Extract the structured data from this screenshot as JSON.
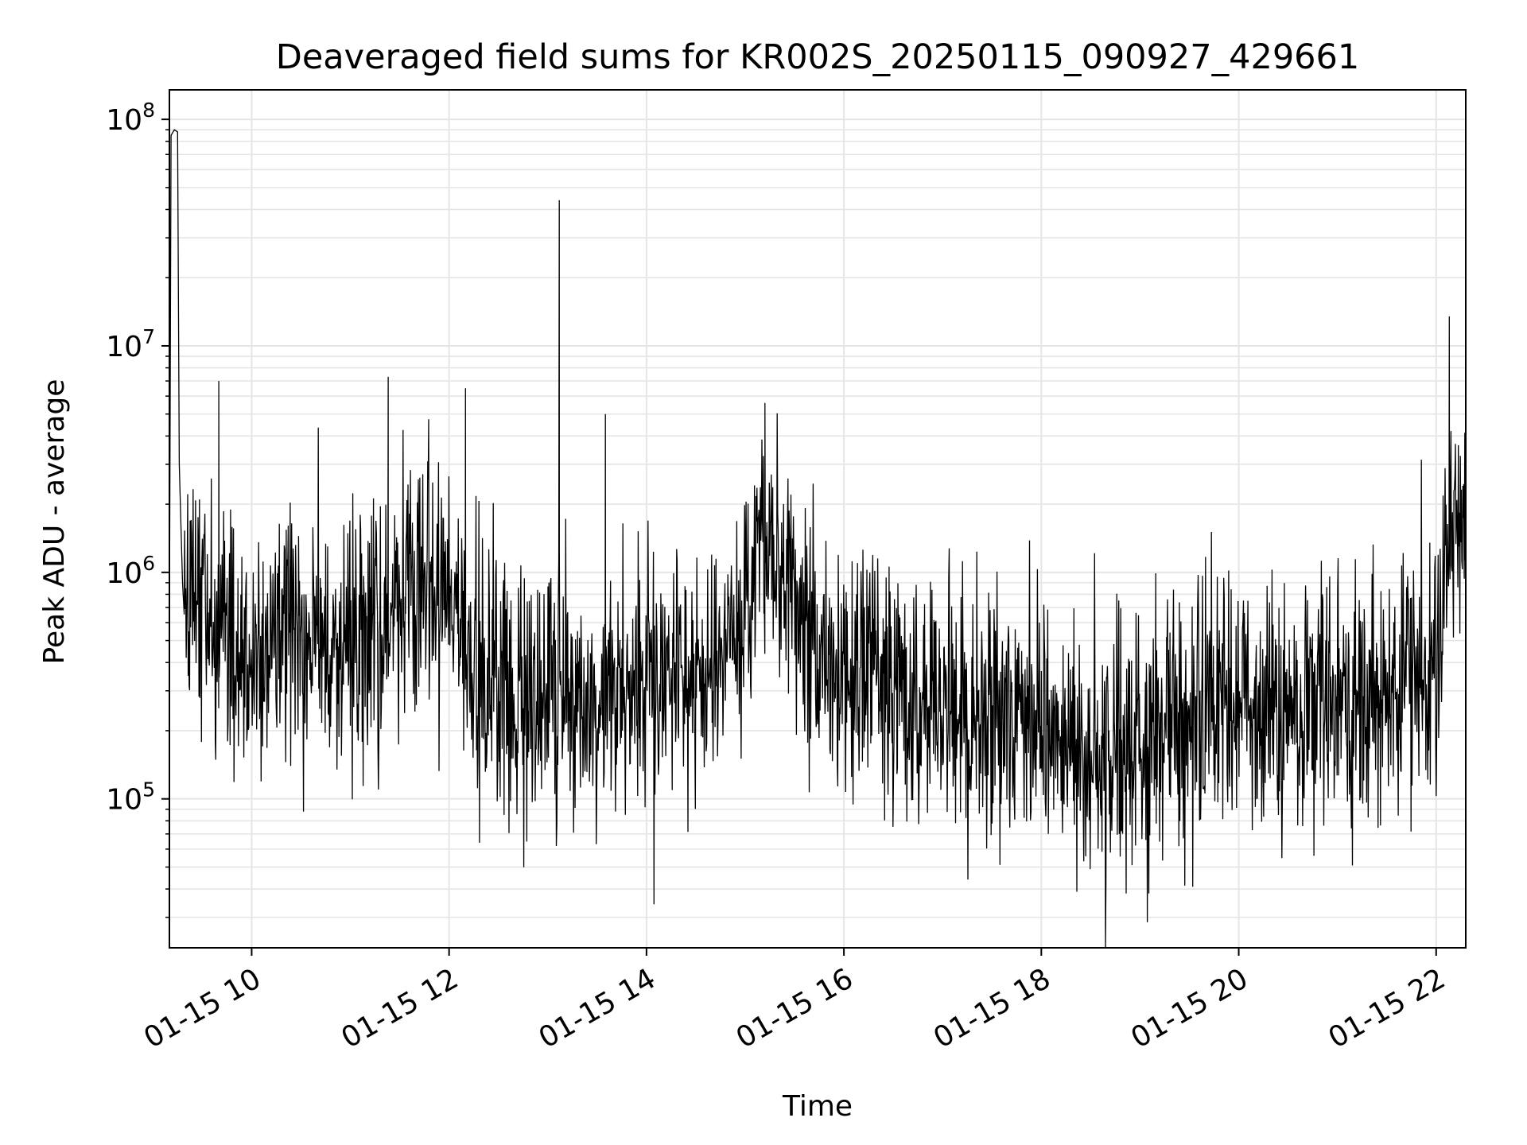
{
  "chart_data": {
    "type": "line",
    "title": "Deaveraged field sums for KR002S_20250115_090927_429661",
    "xlabel": "Time",
    "ylabel": "Peak ADU - average",
    "y_scale": "log",
    "grid": "major and minor",
    "line_color": "#000000",
    "grid_color": "#e5e5e5",
    "xlim": [
      "2025-01-15 09:10",
      "2025-01-15 22:18"
    ],
    "ylim": [
      22000,
      135000000
    ],
    "x_ticks": [
      {
        "time": "2025-01-15 10:00",
        "label": "01-15 10"
      },
      {
        "time": "2025-01-15 12:00",
        "label": "01-15 12"
      },
      {
        "time": "2025-01-15 14:00",
        "label": "01-15 14"
      },
      {
        "time": "2025-01-15 16:00",
        "label": "01-15 16"
      },
      {
        "time": "2025-01-15 18:00",
        "label": "01-15 18"
      },
      {
        "time": "2025-01-15 20:00",
        "label": "01-15 20"
      },
      {
        "time": "2025-01-15 22:00",
        "label": "01-15 22"
      }
    ],
    "y_ticks": [
      {
        "value": 100000,
        "base": "10",
        "exp": "5"
      },
      {
        "value": 1000000,
        "base": "10",
        "exp": "6"
      },
      {
        "value": 10000000,
        "base": "10",
        "exp": "7"
      },
      {
        "value": 100000000,
        "base": "10",
        "exp": "8"
      }
    ],
    "series": [
      {
        "x": [
          "2025-01-15 09:10",
          "2025-01-15 09:11",
          "2025-01-15 09:13",
          "2025-01-15 09:15",
          "2025-01-15 09:16",
          "2025-01-15 09:18",
          "2025-01-15 09:25",
          "2025-01-15 09:35",
          "2025-01-15 09:47",
          "2025-01-15 10:00",
          "2025-01-15 10:30",
          "2025-01-15 11:00",
          "2025-01-15 11:30",
          "2025-01-15 11:45",
          "2025-01-15 12:00",
          "2025-01-15 12:30",
          "2025-01-15 13:00",
          "2025-01-15 13:30",
          "2025-01-15 14:00",
          "2025-01-15 14:30",
          "2025-01-15 14:55",
          "2025-01-15 15:10",
          "2025-01-15 15:30",
          "2025-01-15 16:00",
          "2025-01-15 16:30",
          "2025-01-15 17:00",
          "2025-01-15 17:30",
          "2025-01-15 18:00",
          "2025-01-15 18:30",
          "2025-01-15 19:00",
          "2025-01-15 19:30",
          "2025-01-15 20:00",
          "2025-01-15 20:30",
          "2025-01-15 21:00",
          "2025-01-15 21:30",
          "2025-01-15 22:00",
          "2025-01-15 22:10",
          "2025-01-15 22:18"
        ],
        "y": [
          550000,
          85000000,
          90000000,
          88000000,
          3000000,
          900000,
          800000,
          600000,
          450000,
          550000,
          500000,
          450000,
          700000,
          1000000,
          800000,
          300000,
          280000,
          300000,
          280000,
          350000,
          500000,
          1500000,
          600000,
          400000,
          300000,
          260000,
          230000,
          200000,
          160000,
          180000,
          200000,
          260000,
          250000,
          270000,
          300000,
          400000,
          1600000,
          1300000
        ]
      }
    ],
    "spikes": [
      {
        "x": "2025-01-15 09:40",
        "y": 7000000
      },
      {
        "x": "2025-01-15 11:23",
        "y": 7300000
      },
      {
        "x": "2025-01-15 12:10",
        "y": 6500000
      },
      {
        "x": "2025-01-15 13:07",
        "y": 44000000
      },
      {
        "x": "2025-01-15 13:35",
        "y": 5000000
      },
      {
        "x": "2025-01-15 15:12",
        "y": 5600000
      },
      {
        "x": "2025-01-15 22:08",
        "y": 13500000
      }
    ]
  }
}
